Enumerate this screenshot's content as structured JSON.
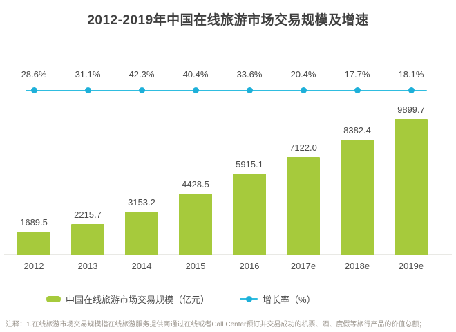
{
  "title": "2012-2019年中国在线旅游市场交易规模及增速",
  "footnote": "注释：1.在线旅游市场交易规模指在线旅游服务提供商通过在线或者Call Center预订并交易成功的机票、酒、度假等旅行产品的价值总额；",
  "chart_data": {
    "type": "bar",
    "title": "2012-2019年中国在线旅游市场交易规模及增速",
    "categories": [
      "2012",
      "2013",
      "2014",
      "2015",
      "2016",
      "2017e",
      "2018e",
      "2019e"
    ],
    "series": [
      {
        "name": "中国在线旅游市场交易规模（亿元）",
        "type": "bar",
        "values": [
          1689.5,
          2215.7,
          3153.2,
          4428.5,
          5915.1,
          7122.0,
          8382.4,
          9899.7
        ]
      },
      {
        "name": "增长率（%）",
        "type": "line",
        "values": [
          28.6,
          31.1,
          42.3,
          40.4,
          33.6,
          20.4,
          17.7,
          18.1
        ]
      }
    ],
    "value_labels": [
      "1689.5",
      "2215.7",
      "3153.2",
      "4428.5",
      "5915.1",
      "7122.0",
      "8382.4",
      "9899.7"
    ],
    "growth_labels": [
      "28.6%",
      "31.1%",
      "42.3%",
      "40.4%",
      "33.6%",
      "20.4%",
      "17.7%",
      "18.1%"
    ],
    "legend": [
      {
        "label": "中国在线旅游市场交易规模（亿元）",
        "marker": "bar-swatch"
      },
      {
        "label": "增长率（%）",
        "marker": "line-dot-swatch"
      }
    ],
    "colors": {
      "bar": "#a6ca3c",
      "line": "#2fbde0",
      "dot": "#1eb0d9"
    },
    "layout": {
      "growth_line_flat": true,
      "legend_position": "bottom",
      "grid": false,
      "ylim_bar": [
        0,
        10500
      ]
    }
  }
}
